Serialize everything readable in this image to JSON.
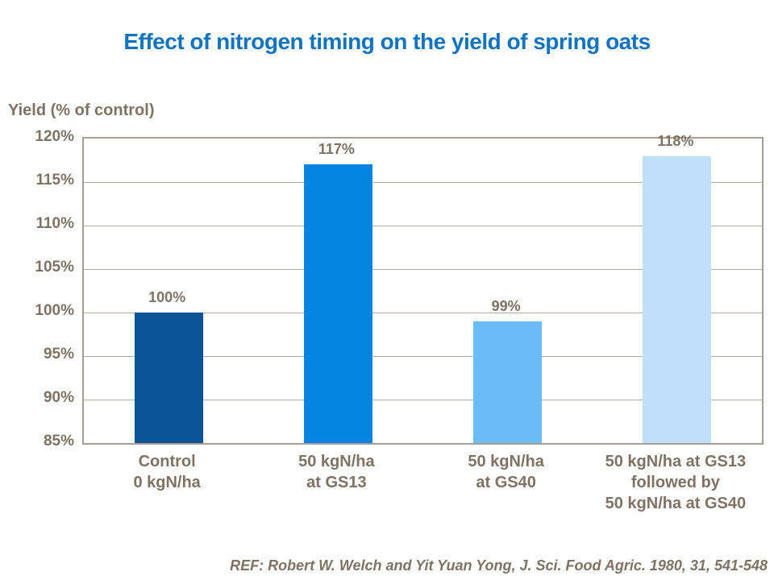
{
  "title": "Effect of nitrogen timing on the yield of spring oats",
  "reference": "REF: Robert W. Welch and Yit Yuan Yong, J. Sci. Food Agric. 1980, 31, 541-548",
  "colors": {
    "title_blue": "#1173BF",
    "label_brown": "#7F7265",
    "frame": "#A89E93",
    "gridline": "#B4ABA1",
    "bar_colors": [
      "#0A5497",
      "#0584E2",
      "#6ABDF9",
      "#BFDFFA"
    ]
  },
  "chart_data": {
    "type": "bar",
    "title": "Effect of nitrogen timing on the yield of spring oats",
    "xlabel": "",
    "ylabel": "Yield (% of control)",
    "ylim": [
      85,
      120
    ],
    "ytick_step": 5,
    "yticks": [
      "120%",
      "115%",
      "110%",
      "105%",
      "100%",
      "95%",
      "90%",
      "85%"
    ],
    "categories": [
      "Control\n0 kgN/ha",
      "50 kgN/ha\nat GS13",
      "50 kgN/ha\nat GS40",
      "50 kgN/ha at GS13\nfollowed by\n50 kgN/ha at GS40"
    ],
    "values": [
      100,
      117,
      99,
      118
    ],
    "value_labels": [
      "100%",
      "117%",
      "99%",
      "118%"
    ],
    "grid": true,
    "legend": false,
    "annotation": "REF: Robert W. Welch and Yit Yuan Yong, J. Sci. Food Agric. 1980, 31, 541-548"
  }
}
